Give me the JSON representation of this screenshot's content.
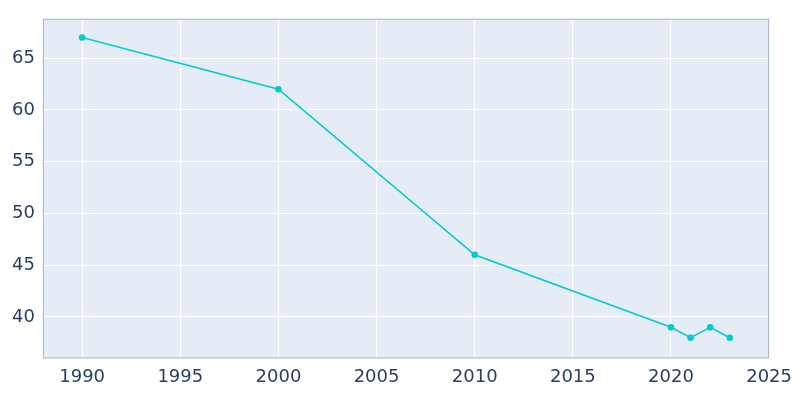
{
  "chart_data": {
    "type": "line",
    "x": [
      1990,
      2000,
      2010,
      2020,
      2021,
      2022,
      2023
    ],
    "values": [
      67,
      62,
      46,
      39,
      38,
      39,
      38
    ],
    "color": "#00cccc",
    "marker": "circle",
    "xlim": [
      1988,
      2025
    ],
    "xticks": [
      1990,
      1995,
      2000,
      2005,
      2010,
      2015,
      2020,
      2025
    ],
    "ylim": [
      36,
      68.8
    ],
    "yticks": [
      40,
      45,
      50,
      55,
      60,
      65
    ],
    "grid": true
  }
}
